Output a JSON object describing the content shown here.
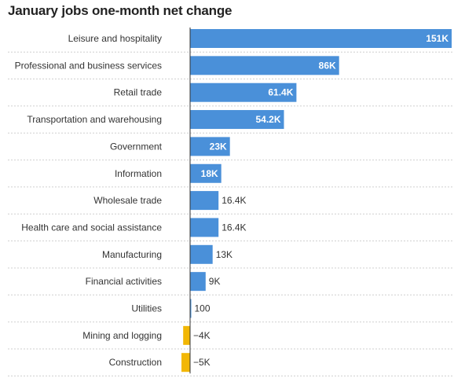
{
  "chart_data": {
    "type": "bar",
    "orientation": "horizontal",
    "title": "January jobs one-month net change",
    "categories": [
      "Leisure and hospitality",
      "Professional and business services",
      "Retail trade",
      "Transportation and warehousing",
      "Government",
      "Information",
      "Wholesale trade",
      "Health care and social assistance",
      "Manufacturing",
      "Financial activities",
      "Utilities",
      "Mining and logging",
      "Construction"
    ],
    "values": [
      151000,
      86000,
      61400,
      54200,
      23000,
      18000,
      16400,
      16400,
      13000,
      9000,
      100,
      -4000,
      -5000
    ],
    "value_labels": [
      "151K",
      "86K",
      "61.4K",
      "54.2K",
      "23K",
      "18K",
      "16.4K",
      "16.4K",
      "13K",
      "9K",
      "100",
      "−4K",
      "−5K"
    ],
    "xlim": [
      -5000,
      151000
    ],
    "grid": "horizontal-dotted",
    "colors": {
      "positive": "#4a90d9",
      "negative": "#f2b705"
    }
  }
}
